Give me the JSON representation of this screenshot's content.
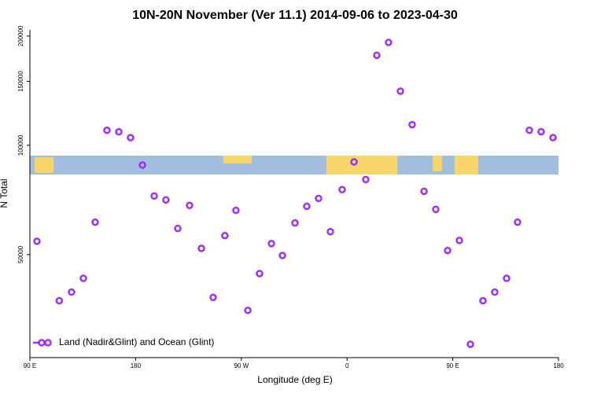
{
  "chart_data": {
    "type": "scatter",
    "title": "10N-20N November (Ver 11.1)   2014-09-06 to 2023-04-30",
    "x_label": "Longitude (deg E)",
    "y_label": "N Total",
    "xlim": [
      90,
      540
    ],
    "ylim": [
      26000,
      208000
    ],
    "y_log": true,
    "xticks": [
      {
        "value": 90,
        "label": "90 E"
      },
      {
        "value": 180,
        "label": "180"
      },
      {
        "value": 270,
        "label": "90 W"
      },
      {
        "value": 360,
        "label": "0"
      },
      {
        "value": 450,
        "label": "90 E"
      },
      {
        "value": 540,
        "label": "180"
      }
    ],
    "yticks": [
      50000,
      100000,
      150000,
      200000
    ],
    "legend": "bottom-left",
    "series": [
      {
        "name": "Land (Nadir&Glint) and Ocean (Glint)",
        "color": "#9b30ff",
        "x": [
          96,
          115,
          125.5,
          135.5,
          145.6,
          155.6,
          165.7,
          175.7,
          185.8,
          195.8,
          205.8,
          215.9,
          225.9,
          236,
          246,
          256,
          265.4,
          275.5,
          285.5,
          295.6,
          305,
          315.7,
          325.7,
          335.7,
          345.8,
          355.8,
          365.9,
          375.9,
          385.3,
          395.3,
          405.4,
          415.4,
          425.5,
          435.5,
          445.6,
          455.6,
          465,
          475.7,
          485.7,
          495.8,
          505.1,
          515.2,
          525.2,
          535.3
        ],
        "values": [
          54400,
          37300,
          39400,
          43000,
          61400,
          110000,
          109000,
          105000,
          88200,
          72500,
          70700,
          59000,
          68300,
          52000,
          38100,
          56400,
          66200,
          35100,
          44300,
          53600,
          49700,
          61100,
          67900,
          71400,
          57800,
          75500,
          90000,
          80500,
          177000,
          192000,
          141000,
          114000,
          74700,
          66600,
          51300,
          54700,
          28300,
          37300,
          39400,
          43000,
          61400,
          110000,
          109000,
          105000
        ]
      }
    ]
  }
}
